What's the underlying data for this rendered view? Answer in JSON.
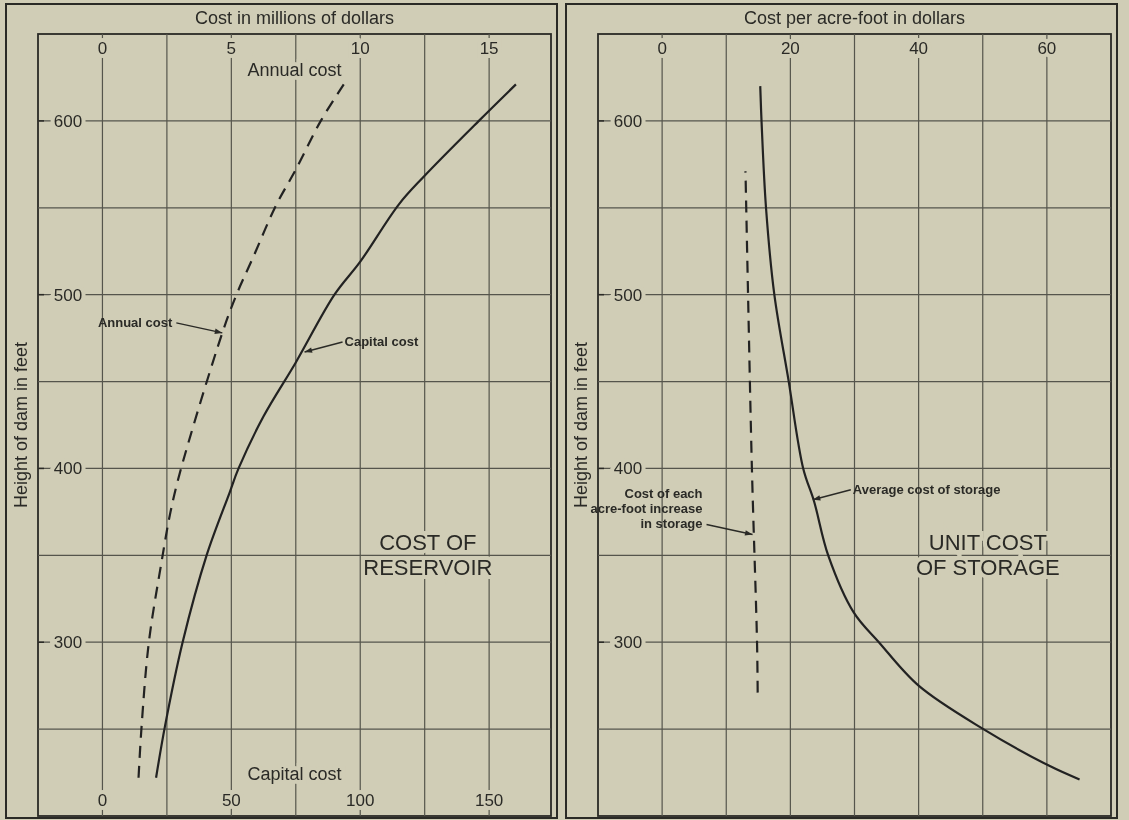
{
  "chart_data": [
    {
      "type": "line",
      "title": "COST OF RESERVOIR",
      "subtitle": "Cost in millions of dollars",
      "xlabel": "Capital cost",
      "x2label": "Annual cost",
      "ylabel": "Height of dam in feet",
      "xlim": [
        -25,
        174
      ],
      "xticks": [
        0,
        {
          "value": 25,
          "label": null
        },
        50,
        {
          "value": 75,
          "label": null
        },
        100,
        {
          "value": 125,
          "label": null
        },
        150
      ],
      "x2lim": [
        -2.5,
        17.4
      ],
      "x2ticks": [
        0,
        5,
        10,
        15
      ],
      "ylim": [
        200,
        650
      ],
      "yticks": [
        {
          "value": 250,
          "label": null
        },
        300,
        {
          "value": 350,
          "label": null
        },
        400,
        {
          "value": 450,
          "label": null
        },
        500,
        {
          "value": 550,
          "label": null
        },
        600
      ],
      "grid": true,
      "series": [
        {
          "color": "#222222",
          "line_style": "solid",
          "x": [
            20.8,
            24.3,
            31.1,
            40.4,
            49.3,
            52.8,
            62.5,
            75,
            90,
            100,
            115,
            124.7,
            146,
            160.4
          ],
          "values": [
            222,
            252,
            300,
            350,
            386,
            400,
            430,
            461,
            500,
            519,
            552,
            568,
            600,
            621
          ]
        },
        {
          "color": "#222222",
          "line_style": "dashed",
          "axis": "x2",
          "x": [
            1.4,
            1.52,
            1.8,
            2.29,
            2.64,
            3.05,
            4.65,
            5.2,
            5.83,
            6.72,
            7.5,
            8.47,
            9.36
          ],
          "values": [
            222,
            252,
            300,
            346,
            375,
            400,
            478,
            500,
            521,
            551,
            572,
            600,
            621
          ]
        }
      ],
      "annotations": [
        {
          "text": "Annual cost",
          "x": 46.5,
          "y": 478
        },
        {
          "text": "Capital cost",
          "x": 78.4,
          "y": 467
        }
      ]
    },
    {
      "type": "line",
      "title": "UNIT COST OF STORAGE",
      "xlabel": "Cost per acre-foot in dollars",
      "ylabel": "Height of dam in feet",
      "xlim": [
        -10,
        70
      ],
      "xticks": [
        0,
        {
          "value": 10,
          "label": null
        },
        20,
        {
          "value": 30,
          "label": null
        },
        40,
        {
          "value": 50,
          "label": null
        },
        60
      ],
      "ylim": [
        200,
        650
      ],
      "yticks": [
        {
          "value": 250,
          "label": null
        },
        300,
        {
          "value": 350,
          "label": null
        },
        400,
        {
          "value": 450,
          "label": null
        },
        500,
        {
          "value": 550,
          "label": null
        },
        600
      ],
      "grid": true,
      "series": [
        {
          "color": "#222222",
          "line_style": "solid",
          "x": [
            65.1,
            60.3,
            50.1,
            40,
            33.8,
            29.9,
            25.9,
            23.7,
            22.0,
            19.7,
            17.5,
            16.2,
            15.5,
            15.3
          ],
          "values": [
            221,
            229,
            250,
            275,
            300,
            317,
            350,
            381,
            400,
            451,
            500,
            550,
            600,
            620
          ]
        },
        {
          "color": "#222222",
          "line_style": "dashed",
          "x": [
            14.9,
            14.8,
            14.0,
            13.4,
            13.0
          ],
          "values": [
            271,
            300,
            400,
            500,
            571
          ]
        }
      ],
      "annotations": [
        {
          "text": "Average cost of storage",
          "x": 23.5,
          "y": 382
        },
        {
          "text": "Cost of each acre-foot increase in storage",
          "x": 14.1,
          "y": 362
        }
      ]
    }
  ]
}
